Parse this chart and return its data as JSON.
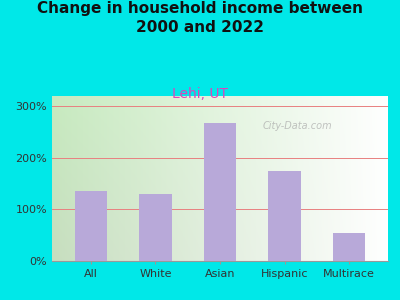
{
  "title": "Change in household income between\n2000 and 2022",
  "subtitle": "Lehi, UT",
  "categories": [
    "All",
    "White",
    "Asian",
    "Hispanic",
    "Multirace"
  ],
  "values": [
    135,
    130,
    268,
    175,
    55
  ],
  "bar_color": "#b8a9d9",
  "title_fontsize": 11,
  "subtitle_fontsize": 10,
  "subtitle_color": "#dd44bb",
  "background_outer": "#00e8e8",
  "ylim": [
    0,
    320
  ],
  "yticks": [
    0,
    100,
    200,
    300
  ],
  "ytick_labels": [
    "0%",
    "100%",
    "200%",
    "300%"
  ],
  "grid_color": "#e88080",
  "watermark": "City-Data.com"
}
